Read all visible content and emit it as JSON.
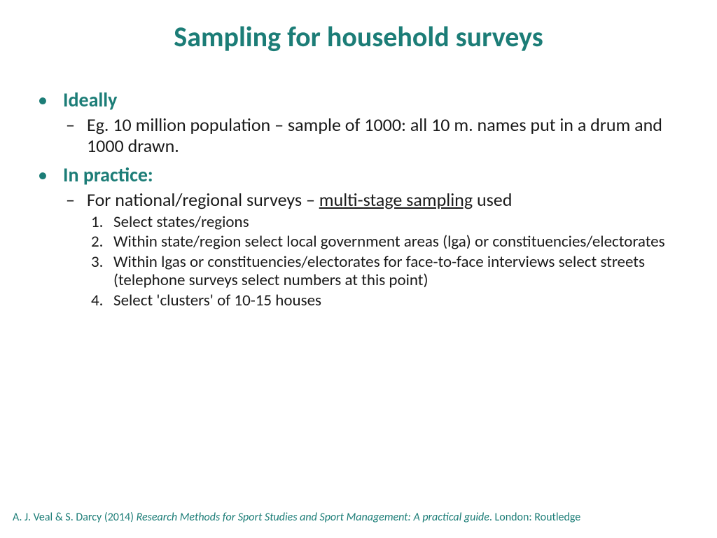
{
  "colors": {
    "teal": "#1c7d77",
    "body": "#1a1a1a",
    "bg": "#ffffff"
  },
  "fonts": {
    "title_size": 40,
    "heading_size": 28,
    "dash_size": 26,
    "num_size": 23,
    "footer_size": 16
  },
  "title": "Sampling for household surveys",
  "sections": [
    {
      "heading": "Ideally",
      "dash_items": [
        {
          "text": "Eg. 10 million population – sample of 1000: all 10 m. names put in a drum and 1000 drawn."
        }
      ]
    },
    {
      "heading": "In practice:",
      "dash_items": [
        {
          "prefix": "For national/regional surveys – ",
          "underlined": "multi-stage sampling",
          "suffix": " used",
          "num_items": [
            "Select states/regions",
            "Within state/region select local government areas (lga) or constituencies/electorates",
            "Within lgas or constituencies/electorates for face-to-face interviews select streets (telephone surveys select numbers at this point)",
            "Select 'clusters' of 10-15 houses"
          ]
        }
      ]
    }
  ],
  "footer": {
    "authors": "A. J. Veal & S. Darcy (2014) ",
    "title_italic": "Research Methods for Sport Studies and Sport Management: A practical guide",
    "suffix": ". London: Routledge"
  }
}
